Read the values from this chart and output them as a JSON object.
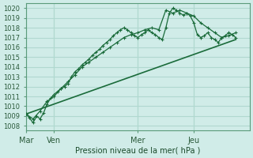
{
  "title": "",
  "xlabel": "Pression niveau de la mer( hPa )",
  "ylabel": "",
  "bg_color": "#d0ece8",
  "grid_color": "#b0d8d0",
  "line_color": "#1a6b3a",
  "ylim": [
    1007.5,
    1020.5
  ],
  "yticks": [
    1008,
    1009,
    1010,
    1011,
    1012,
    1013,
    1014,
    1015,
    1016,
    1017,
    1018,
    1019,
    1020
  ],
  "xtick_labels": [
    "Mar",
    "Ven",
    "Mer",
    "Jeu"
  ],
  "xtick_positions": [
    0,
    24,
    96,
    144
  ],
  "total_hours": 192,
  "vlines": [
    0,
    24,
    96,
    144
  ],
  "series1": {
    "x": [
      0,
      3,
      6,
      9,
      12,
      15,
      18,
      21,
      24,
      27,
      30,
      33,
      36,
      39,
      42,
      45,
      48,
      51,
      54,
      57,
      60,
      63,
      66,
      69,
      72,
      75,
      78,
      81,
      84,
      87,
      90,
      93,
      96,
      99,
      102,
      105,
      108,
      111,
      114,
      117,
      120,
      123,
      126,
      129,
      132,
      135,
      138,
      141,
      144,
      147,
      150,
      153,
      156,
      159,
      162,
      165,
      168,
      171,
      174,
      177,
      180
    ],
    "y": [
      1009.2,
      1008.8,
      1008.3,
      1009.0,
      1008.7,
      1009.3,
      1010.2,
      1010.8,
      1011.2,
      1011.5,
      1011.8,
      1012.0,
      1012.3,
      1013.0,
      1013.5,
      1013.8,
      1014.2,
      1014.5,
      1014.8,
      1015.2,
      1015.5,
      1015.8,
      1016.2,
      1016.5,
      1016.8,
      1017.2,
      1017.5,
      1017.8,
      1018.0,
      1017.8,
      1017.5,
      1017.2,
      1017.0,
      1017.3,
      1017.5,
      1017.8,
      1017.5,
      1017.3,
      1017.0,
      1016.8,
      1018.0,
      1019.5,
      1020.0,
      1019.8,
      1019.5,
      1019.3,
      1019.5,
      1019.2,
      1018.5,
      1017.3,
      1017.0,
      1017.2,
      1017.5,
      1017.0,
      1016.8,
      1016.5,
      1017.0,
      1017.2,
      1017.5,
      1017.3,
      1017.0
    ]
  },
  "series2": {
    "x": [
      0,
      6,
      12,
      18,
      24,
      30,
      36,
      42,
      48,
      54,
      60,
      66,
      72,
      78,
      84,
      90,
      96,
      102,
      108,
      114,
      120,
      126,
      132,
      138,
      144,
      150,
      156,
      162,
      168,
      174,
      180
    ],
    "y": [
      1009.2,
      1008.7,
      1009.5,
      1010.5,
      1011.0,
      1011.8,
      1012.5,
      1013.2,
      1014.0,
      1014.5,
      1015.0,
      1015.5,
      1016.0,
      1016.5,
      1017.0,
      1017.3,
      1017.5,
      1017.8,
      1018.0,
      1017.8,
      1019.8,
      1019.5,
      1019.8,
      1019.5,
      1019.2,
      1018.5,
      1018.0,
      1017.5,
      1017.0,
      1017.2,
      1017.5
    ]
  },
  "series3_straight": {
    "x": [
      0,
      180
    ],
    "y": [
      1009.2,
      1016.8
    ]
  }
}
